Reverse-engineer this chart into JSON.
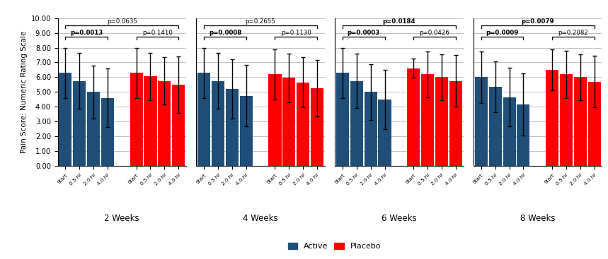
{
  "weeks": [
    "2 Weeks",
    "4 Weeks",
    "6 Weeks",
    "8 Weeks"
  ],
  "x_tick_labels_active": [
    "Start",
    "0.5 hr",
    "2.0 hr",
    "4.0 hr"
  ],
  "x_tick_labels_placebo": [
    "Start",
    "0.5 hr",
    "2.0 hr",
    "4.0 hr"
  ],
  "active_values": [
    [
      6.3,
      5.75,
      5.0,
      4.6
    ],
    [
      6.3,
      5.75,
      5.2,
      4.75
    ],
    [
      6.3,
      5.75,
      5.0,
      4.5
    ],
    [
      6.0,
      5.35,
      4.65,
      4.15
    ]
  ],
  "placebo_values": [
    [
      6.3,
      6.05,
      5.75,
      5.5
    ],
    [
      6.2,
      5.95,
      5.65,
      5.25
    ],
    [
      6.6,
      6.2,
      6.0,
      5.75
    ],
    [
      6.5,
      6.2,
      6.0,
      5.7
    ]
  ],
  "active_errors": [
    [
      1.7,
      1.9,
      1.8,
      2.0
    ],
    [
      1.7,
      1.9,
      2.0,
      2.1
    ],
    [
      1.7,
      1.85,
      1.9,
      2.0
    ],
    [
      1.75,
      1.7,
      2.0,
      2.1
    ]
  ],
  "placebo_errors": [
    [
      1.7,
      1.6,
      1.6,
      1.9
    ],
    [
      1.7,
      1.65,
      1.7,
      1.9
    ],
    [
      0.65,
      1.55,
      1.55,
      1.75
    ],
    [
      1.4,
      1.6,
      1.55,
      1.75
    ]
  ],
  "active_color": "#1F4E79",
  "placebo_color": "#FF0000",
  "ylabel": "Pain Score: Numeric Rating Scale",
  "ylim": [
    0,
    10.0
  ],
  "yticks": [
    0.0,
    1.0,
    2.0,
    3.0,
    4.0,
    5.0,
    6.0,
    7.0,
    8.0,
    9.0,
    10.0
  ],
  "ytick_labels": [
    "0.00",
    "1.00",
    "2.00",
    "3.00",
    "4.00",
    "5.00",
    "6.00",
    "7.00",
    "8.00",
    "9.00",
    "10.00"
  ],
  "p_values_inner": [
    [
      "p=0.0013",
      "p=0.1410"
    ],
    [
      "p=0.0008",
      "p=0.1130"
    ],
    [
      "p=0.0003",
      "p=0.0426"
    ],
    [
      "p=0.0009",
      "p=0.2082"
    ]
  ],
  "p_active_bold": [
    true,
    true,
    true,
    true
  ],
  "p_placebo_bold": [
    false,
    false,
    false,
    false
  ],
  "p_values_outer": [
    "p=0.0635",
    "p=0.2655",
    "p=0.0184",
    "p=0.0079"
  ],
  "p_values_outer_bold": [
    false,
    false,
    true,
    true
  ],
  "background_color": "#FFFFFF",
  "grid_color": "#C0C0C0"
}
